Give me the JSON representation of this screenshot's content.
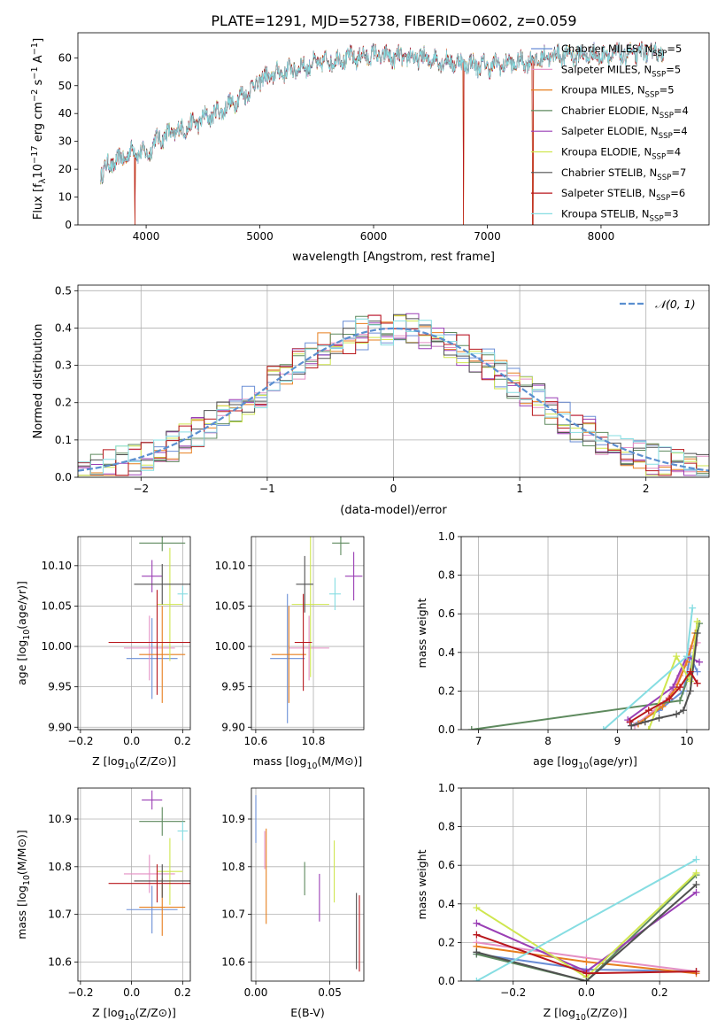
{
  "figure_title": "PLATE=1291, MJD=52738, FIBERID=0602, z=0.059",
  "series": [
    {
      "name": "Chabrier MILES, N_SSP=5",
      "color": "#6a8ed6"
    },
    {
      "name": "Salpeter MILES, N_SSP=5",
      "color": "#e48fc4"
    },
    {
      "name": "Kroupa MILES, N_SSP=5",
      "color": "#e77f1e"
    },
    {
      "name": "Chabrier ELODIE, N_SSP=4",
      "color": "#5e8a5e"
    },
    {
      "name": "Salpeter ELODIE, N_SSP=4",
      "color": "#9a3fb5"
    },
    {
      "name": "Kroupa ELODIE, N_SSP=4",
      "color": "#cfe64f"
    },
    {
      "name": "Chabrier STELIB, N_SSP=7",
      "color": "#505050"
    },
    {
      "name": "Salpeter STELIB, N_SSP=6",
      "color": "#b8171c"
    },
    {
      "name": "Kroupa STELIB, N_SSP=3",
      "color": "#86dde2"
    }
  ],
  "chart_data": [
    {
      "id": "spectrum",
      "type": "line",
      "title": "PLATE=1291, MJD=52738, FIBERID=0602, z=0.059",
      "xlabel": "wavelength [Angstrom, rest frame]",
      "ylabel": "Flux [f_λ 10^-17 erg cm^-2 s^-1 A^-1]",
      "xlim": [
        3400,
        8950
      ],
      "ylim": [
        0,
        69
      ],
      "xticks": [
        4000,
        5000,
        6000,
        7000,
        8000
      ],
      "yticks": [
        0,
        10,
        20,
        30,
        40,
        50,
        60
      ],
      "legend": "upper right",
      "grid": false,
      "continuum": [
        [
          3600,
          19
        ],
        [
          3700,
          22
        ],
        [
          3800,
          24
        ],
        [
          3900,
          27
        ],
        [
          4000,
          25
        ],
        [
          4100,
          31
        ],
        [
          4300,
          34
        ],
        [
          4500,
          38
        ],
        [
          4700,
          42
        ],
        [
          4900,
          48
        ],
        [
          5000,
          52
        ],
        [
          5200,
          55
        ],
        [
          5400,
          57
        ],
        [
          5600,
          59
        ],
        [
          5800,
          60
        ],
        [
          6000,
          61
        ],
        [
          6200,
          60
        ],
        [
          6400,
          60
        ],
        [
          6600,
          59
        ],
        [
          6800,
          58
        ],
        [
          7000,
          57
        ],
        [
          7200,
          58
        ],
        [
          7400,
          59
        ],
        [
          7600,
          61
        ],
        [
          7800,
          61
        ],
        [
          8000,
          61
        ],
        [
          8200,
          61
        ],
        [
          8400,
          62
        ],
        [
          8550,
          62
        ]
      ],
      "dropouts": [
        [
          3900,
          5
        ],
        [
          6790,
          7
        ],
        [
          7400,
          1
        ]
      ]
    },
    {
      "id": "residuals",
      "type": "bar",
      "xlabel": "(data-model)/error",
      "ylabel": "Normed distribution",
      "xlim": [
        -2.5,
        2.5
      ],
      "ylim": [
        0,
        0.515
      ],
      "xticks": [
        -2,
        -1,
        0,
        1,
        2
      ],
      "yticks": [
        0.0,
        0.1,
        0.2,
        0.3,
        0.4,
        0.5
      ],
      "legend": "upper right",
      "reference_curve": {
        "label": "N(0,1)",
        "mean": 0,
        "sigma": 1
      },
      "grid": true,
      "bins": 50
    },
    {
      "id": "age_vs_Z",
      "type": "scatter",
      "xlabel": "Z [log10(Z/Z⊙)]",
      "ylabel": "age [log10(age/yr)]",
      "xlim": [
        -0.21,
        0.23
      ],
      "ylim": [
        9.897,
        10.136
      ],
      "xticks": [
        -0.2,
        0.0,
        0.2
      ],
      "yticks": [
        9.9,
        9.95,
        10.0,
        10.05,
        10.1
      ],
      "grid": true,
      "points": [
        {
          "x": 0.08,
          "y": 9.985,
          "xerr": 0.1,
          "yerr": 0.05
        },
        {
          "x": 0.07,
          "y": 9.998,
          "xerr": 0.1,
          "yerr": 0.04
        },
        {
          "x": 0.12,
          "y": 9.99,
          "xerr": 0.09,
          "yerr": 0.06
        },
        {
          "x": 0.12,
          "y": 10.128,
          "xerr": 0.09,
          "yerr": 0.01
        },
        {
          "x": 0.08,
          "y": 10.087,
          "xerr": 0.04,
          "yerr": 0.02
        },
        {
          "x": 0.15,
          "y": 10.052,
          "xerr": 0.05,
          "yerr": 0.07
        },
        {
          "x": 0.12,
          "y": 10.077,
          "xerr": 0.11,
          "yerr": 0.025
        },
        {
          "x": 0.1,
          "y": 10.005,
          "xerr": 0.19,
          "yerr": 0.065
        },
        {
          "x": 0.2,
          "y": 10.065,
          "xerr": 0.02,
          "yerr": 0.01
        }
      ]
    },
    {
      "id": "age_vs_mass",
      "type": "scatter",
      "xlabel": "mass [log10(M/M⊙)]",
      "ylabel": "",
      "xlim": [
        10.585,
        10.975
      ],
      "ylim": [
        9.897,
        10.136
      ],
      "xticks": [
        10.6,
        10.8
      ],
      "yticks": [
        9.9,
        9.95,
        10.0,
        10.05,
        10.1
      ],
      "grid": true,
      "points": [
        {
          "x": 10.71,
          "y": 9.985,
          "xerr": 0.06,
          "yerr": 0.08
        },
        {
          "x": 10.785,
          "y": 9.998,
          "xerr": 0.07,
          "yerr": 0.04
        },
        {
          "x": 10.715,
          "y": 9.99,
          "xerr": 0.06,
          "yerr": 0.06
        },
        {
          "x": 10.895,
          "y": 10.128,
          "xerr": 0.03,
          "yerr": 0.015
        },
        {
          "x": 10.94,
          "y": 10.087,
          "xerr": 0.03,
          "yerr": 0.03
        },
        {
          "x": 10.79,
          "y": 10.052,
          "xerr": 0.065,
          "yerr": 0.09
        },
        {
          "x": 10.77,
          "y": 10.077,
          "xerr": 0.03,
          "yerr": 0.035
        },
        {
          "x": 10.765,
          "y": 10.005,
          "xerr": 0.03,
          "yerr": 0.06
        },
        {
          "x": 10.875,
          "y": 10.065,
          "xerr": 0.02,
          "yerr": 0.02
        }
      ]
    },
    {
      "id": "mass_weight_vs_age",
      "type": "line",
      "xlabel": "age [log10(age/yr)]",
      "ylabel": "mass weight",
      "xlim": [
        6.75,
        10.32
      ],
      "ylim": [
        0,
        1.0
      ],
      "xticks": [
        7,
        8,
        9,
        10
      ],
      "yticks": [
        0.0,
        0.2,
        0.4,
        0.6,
        0.8,
        1.0
      ],
      "grid": true,
      "series": [
        {
          "name": "Chabrier MILES, N_SSP=5",
          "x": [
            9.2,
            9.6,
            9.95,
            10.05,
            10.15
          ],
          "y": [
            0.02,
            0.1,
            0.2,
            0.38,
            0.3
          ]
        },
        {
          "name": "Salpeter MILES, N_SSP=5",
          "x": [
            9.25,
            9.7,
            9.9,
            10.05,
            10.15
          ],
          "y": [
            0.02,
            0.15,
            0.28,
            0.42,
            0.45
          ]
        },
        {
          "name": "Kroupa MILES, N_SSP=5",
          "x": [
            9.3,
            9.65,
            9.85,
            10.0,
            10.12
          ],
          "y": [
            0.03,
            0.12,
            0.22,
            0.35,
            0.5
          ]
        },
        {
          "name": "Chabrier ELODIE, N_SSP=4",
          "x": [
            6.9,
            9.9,
            10.05,
            10.18
          ],
          "y": [
            0.0,
            0.15,
            0.3,
            0.55
          ]
        },
        {
          "name": "Salpeter ELODIE, N_SSP=4",
          "x": [
            9.15,
            9.8,
            10.0,
            10.18
          ],
          "y": [
            0.05,
            0.22,
            0.38,
            0.35
          ]
        },
        {
          "name": "Kroupa ELODIE, N_SSP=4",
          "x": [
            9.45,
            9.85,
            10.05,
            10.15
          ],
          "y": [
            0.0,
            0.38,
            0.25,
            0.56
          ]
        },
        {
          "name": "Chabrier STELIB, N_SSP=7",
          "x": [
            9.2,
            9.4,
            9.6,
            9.85,
            9.95,
            10.05,
            10.15
          ],
          "y": [
            0.02,
            0.04,
            0.06,
            0.08,
            0.1,
            0.2,
            0.5
          ]
        },
        {
          "name": "Salpeter STELIB, N_SSP=6",
          "x": [
            9.18,
            9.45,
            9.75,
            9.9,
            10.05,
            10.15
          ],
          "y": [
            0.04,
            0.1,
            0.16,
            0.22,
            0.3,
            0.24
          ]
        },
        {
          "name": "Kroupa STELIB, N_SSP=3",
          "x": [
            8.8,
            10.0,
            10.08
          ],
          "y": [
            0.0,
            0.38,
            0.63
          ]
        }
      ]
    },
    {
      "id": "mass_vs_Z",
      "type": "scatter",
      "xlabel": "Z [log10(Z/Z⊙)]",
      "ylabel": "mass [log10(M/M⊙)]",
      "xlim": [
        -0.21,
        0.23
      ],
      "ylim": [
        10.56,
        10.965
      ],
      "xticks": [
        -0.2,
        0.0,
        0.2
      ],
      "yticks": [
        10.6,
        10.7,
        10.8,
        10.9
      ],
      "grid": true,
      "points": [
        {
          "x": 0.08,
          "y": 10.71,
          "xerr": 0.1,
          "yerr": 0.05
        },
        {
          "x": 0.07,
          "y": 10.785,
          "xerr": 0.1,
          "yerr": 0.04
        },
        {
          "x": 0.12,
          "y": 10.715,
          "xerr": 0.09,
          "yerr": 0.06
        },
        {
          "x": 0.12,
          "y": 10.895,
          "xerr": 0.09,
          "yerr": 0.03
        },
        {
          "x": 0.08,
          "y": 10.94,
          "xerr": 0.04,
          "yerr": 0.02
        },
        {
          "x": 0.15,
          "y": 10.79,
          "xerr": 0.05,
          "yerr": 0.07
        },
        {
          "x": 0.12,
          "y": 10.77,
          "xerr": 0.11,
          "yerr": 0.035
        },
        {
          "x": 0.1,
          "y": 10.765,
          "xerr": 0.19,
          "yerr": 0.04
        },
        {
          "x": 0.2,
          "y": 10.875,
          "xerr": 0.02,
          "yerr": 0.02
        }
      ]
    },
    {
      "id": "mass_vs_ebv",
      "type": "scatter",
      "xlabel": "E(B-V)",
      "ylabel": "",
      "xlim": [
        -0.003,
        0.073
      ],
      "ylim": [
        10.56,
        10.965
      ],
      "xticks": [
        0.0,
        0.05
      ],
      "yticks": [
        10.6,
        10.7,
        10.8,
        10.9
      ],
      "grid": true,
      "points": [
        {
          "x": 0.0,
          "y": 10.9,
          "xerr": 0,
          "yerr": 0.05
        },
        {
          "x": 0.006,
          "y": 10.835,
          "xerr": 0,
          "yerr": 0.04
        },
        {
          "x": 0.007,
          "y": 10.78,
          "xerr": 0,
          "yerr": 0.1
        },
        {
          "x": 0.033,
          "y": 10.775,
          "xerr": 0,
          "yerr": 0.035
        },
        {
          "x": 0.043,
          "y": 10.735,
          "xerr": 0,
          "yerr": 0.05
        },
        {
          "x": 0.053,
          "y": 10.79,
          "xerr": 0,
          "yerr": 0.065
        },
        {
          "x": 0.068,
          "y": 10.665,
          "xerr": 0,
          "yerr": 0.08
        },
        {
          "x": 0.07,
          "y": 10.66,
          "xerr": 0,
          "yerr": 0.08
        }
      ]
    },
    {
      "id": "mass_weight_vs_Z",
      "type": "line",
      "xlabel": "Z [log10(Z/Z⊙)]",
      "ylabel": "mass weight",
      "xlim": [
        -0.342,
        0.335
      ],
      "ylim": [
        0,
        1.0
      ],
      "xticks": [
        -0.2,
        0.0,
        0.2
      ],
      "yticks": [
        0.0,
        0.2,
        0.4,
        0.6,
        0.8,
        1.0
      ],
      "grid": true,
      "series": [
        {
          "name": "Chabrier MILES, N_SSP=5",
          "x": [
            -0.3,
            0.0,
            0.3
          ],
          "y": [
            0.14,
            0.06,
            0.05
          ]
        },
        {
          "name": "Salpeter MILES, N_SSP=5",
          "x": [
            -0.3,
            0.0,
            0.3
          ],
          "y": [
            0.2,
            0.12,
            0.05
          ]
        },
        {
          "name": "Kroupa MILES, N_SSP=5",
          "x": [
            -0.3,
            0.0,
            0.3
          ],
          "y": [
            0.18,
            0.1,
            0.04
          ]
        },
        {
          "name": "Chabrier ELODIE, N_SSP=4",
          "x": [
            -0.3,
            0.0,
            0.3
          ],
          "y": [
            0.14,
            0.0,
            0.55
          ]
        },
        {
          "name": "Salpeter ELODIE, N_SSP=4",
          "x": [
            -0.3,
            0.0,
            0.3
          ],
          "y": [
            0.3,
            0.05,
            0.46
          ]
        },
        {
          "name": "Kroupa ELODIE, N_SSP=4",
          "x": [
            -0.3,
            0.0,
            0.3
          ],
          "y": [
            0.38,
            0.02,
            0.56
          ]
        },
        {
          "name": "Chabrier STELIB, N_SSP=7",
          "x": [
            -0.3,
            0.0,
            0.3
          ],
          "y": [
            0.15,
            0.0,
            0.5
          ]
        },
        {
          "name": "Salpeter STELIB, N_SSP=6",
          "x": [
            -0.3,
            0.0,
            0.3
          ],
          "y": [
            0.24,
            0.04,
            0.05
          ]
        },
        {
          "name": "Kroupa STELIB, N_SSP=3",
          "x": [
            -0.3,
            0.3
          ],
          "y": [
            0.0,
            0.63
          ]
        }
      ]
    }
  ]
}
